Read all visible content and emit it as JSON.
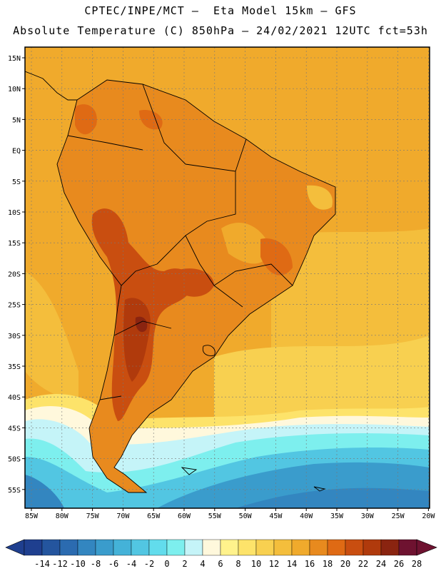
{
  "header": {
    "line1": "CPTEC/INPE/MCT –  Eta Model 15km – GFS",
    "line2": "Absolute Temperature (C) 850hPa – 24/02/2021 12UTC fct=53h"
  },
  "axes": {
    "lat_labels": [
      "15N",
      "10N",
      "5N",
      "EQ",
      "5S",
      "10S",
      "15S",
      "20S",
      "25S",
      "30S",
      "35S",
      "40S",
      "45S",
      "50S",
      "55S"
    ],
    "lon_labels": [
      "85W",
      "80W",
      "75W",
      "70W",
      "65W",
      "60W",
      "55W",
      "50W",
      "45W",
      "40W",
      "35W",
      "30W",
      "25W",
      "20W"
    ]
  },
  "colorbar": {
    "labels": [
      "-14",
      "-12",
      "-10",
      "-8",
      "-6",
      "-4",
      "-2",
      "0",
      "2",
      "4",
      "6",
      "8",
      "10",
      "12",
      "14",
      "16",
      "18",
      "20",
      "22",
      "24",
      "26",
      "28"
    ],
    "colors": [
      "#1f3f8f",
      "#24559e",
      "#2b6bb0",
      "#3386c0",
      "#3a9ccc",
      "#44b2d8",
      "#52c6e2",
      "#62dcec",
      "#7defee",
      "#c5f4f8",
      "#fff8dc",
      "#fff28c",
      "#fde36a",
      "#f8d050",
      "#f4be3c",
      "#f0aa2c",
      "#e88a1e",
      "#df6a14",
      "#c94e10",
      "#b03a0c",
      "#8a2410",
      "#6e1230"
    ]
  },
  "colors": {
    "ocean_warm": "#f0aa2c",
    "land_warm": "#e88a1e",
    "land_hot": "#c94e10",
    "land_hotter": "#b03a0c",
    "cold_south": "#3a9ccc",
    "coastline": "#000000"
  }
}
